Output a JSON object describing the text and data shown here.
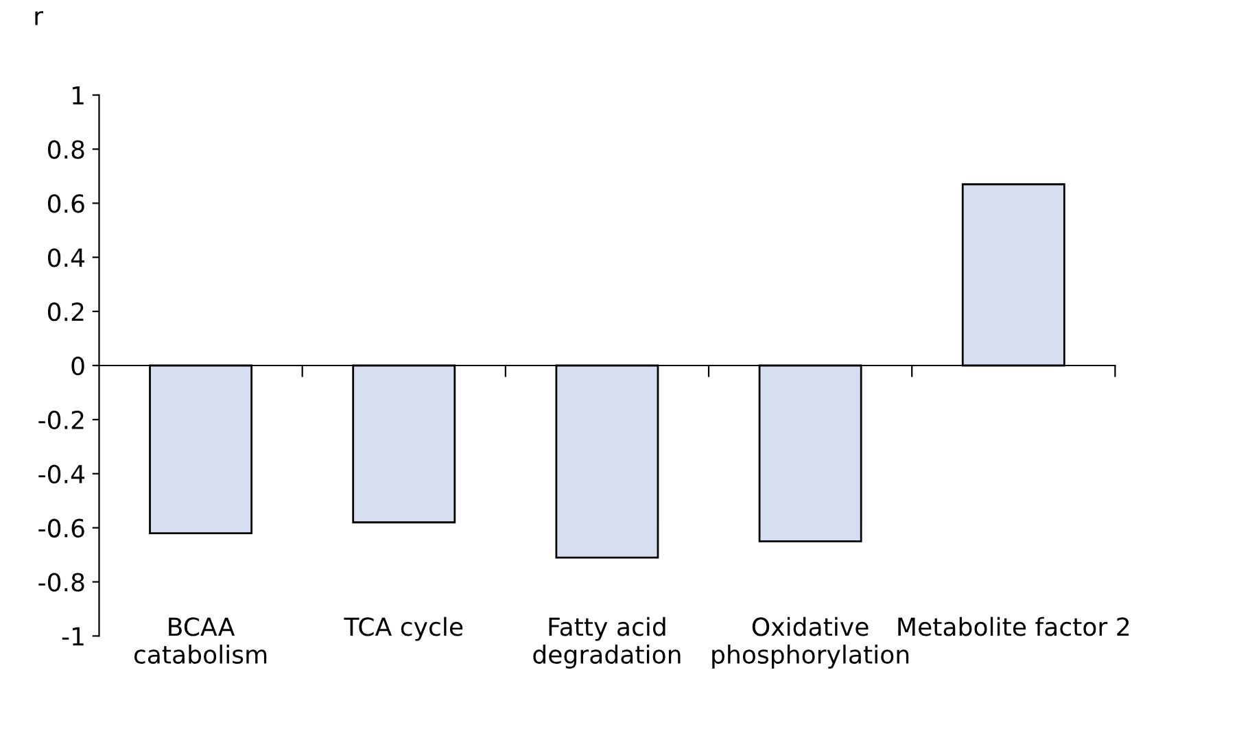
{
  "chart_data": {
    "type": "bar",
    "ylabel": "r",
    "categories": [
      "BCAA\ncatabolism",
      "TCA cycle",
      "Fatty acid\ndegradation",
      "Oxidative\nphosphorylation",
      "Metabolite factor 2"
    ],
    "values": [
      -0.62,
      -0.58,
      -0.71,
      -0.65,
      0.67
    ],
    "color": "#d6def0",
    "ylim": [
      -1,
      1
    ],
    "yticks": [
      -1,
      -0.8,
      -0.6,
      -0.4,
      -0.2,
      0,
      0.2,
      0.4,
      0.6,
      0.8,
      1
    ],
    "legend": false
  }
}
